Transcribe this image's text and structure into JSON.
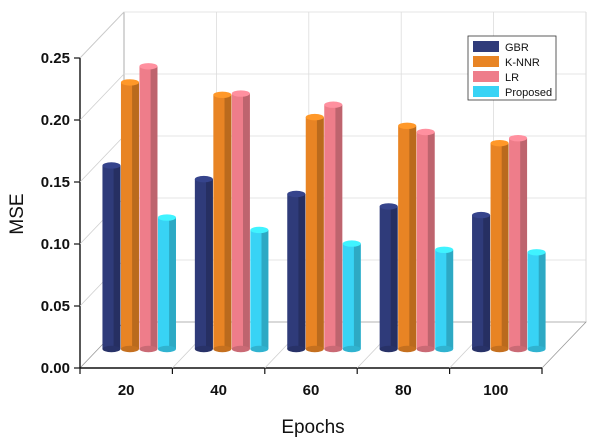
{
  "chart_data": {
    "type": "bar",
    "title": "",
    "xlabel": "Epochs",
    "ylabel": "MSE",
    "categories": [
      "20",
      "40",
      "60",
      "80",
      "100"
    ],
    "ylim": [
      0,
      0.25
    ],
    "yticks": [
      "0.00",
      "0.05",
      "0.10",
      "0.15",
      "0.20",
      "0.25"
    ],
    "grid": true,
    "legend_position": "top-right",
    "series": [
      {
        "name": "GBR",
        "color": "#2f3b7a",
        "values": [
          0.148,
          0.137,
          0.125,
          0.115,
          0.108
        ]
      },
      {
        "name": "K-NNR",
        "color": "#e88424",
        "values": [
          0.215,
          0.205,
          0.187,
          0.18,
          0.166
        ]
      },
      {
        "name": "LR",
        "color": "#ee7d8a",
        "values": [
          0.228,
          0.206,
          0.197,
          0.175,
          0.17
        ]
      },
      {
        "name": "Proposed",
        "color": "#38d3f5",
        "values": [
          0.106,
          0.096,
          0.085,
          0.08,
          0.078
        ]
      }
    ]
  }
}
